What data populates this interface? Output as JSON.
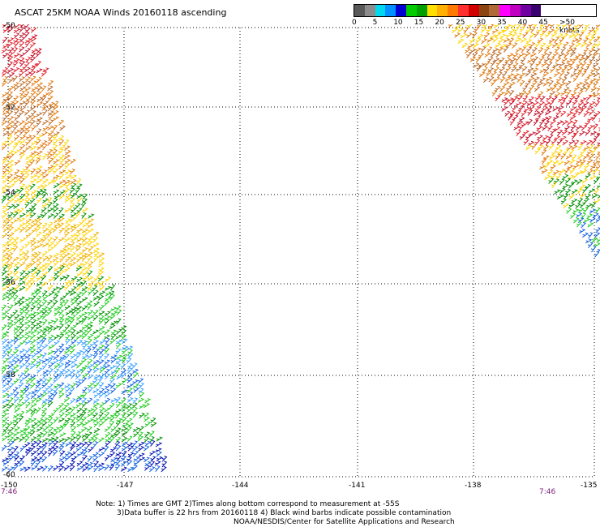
{
  "title": "ASCAT 25KM NOAA Winds 20160118 ascending",
  "colorscale": {
    "colors": [
      "#595959",
      "#8c8c8c",
      "#00d8f0",
      "#0090ff",
      "#0000d0",
      "#00cc00",
      "#00a000",
      "#ffe000",
      "#ffb000",
      "#ff7a00",
      "#ff3030",
      "#d00000",
      "#8b4513",
      "#b06a3a",
      "#ff00ff",
      "#c000c0",
      "#7000a0",
      "#3a0070"
    ],
    "ticks": [
      "0",
      "5",
      "10",
      "15",
      "20",
      "25",
      "30",
      "35",
      "40",
      "45",
      ">50 knots"
    ]
  },
  "lat_labels": [
    "-50",
    "-52",
    "-54",
    "-56",
    "-58",
    "-60"
  ],
  "lon_labels": [
    "-150",
    "-147",
    "-144",
    "-141",
    "-138",
    "-135"
  ],
  "time_labels": [
    "7:46",
    "7:46"
  ],
  "notes": [
    "Note: 1) Times are GMT 2)Times along bottom correspond to measurement at -55S",
    "3)Data buffer is 22 hrs from 20160118 4) Black wind barbs indicate possible contamination",
    "NOAA/NESDIS/Center for Satellite Applications and Research"
  ]
}
